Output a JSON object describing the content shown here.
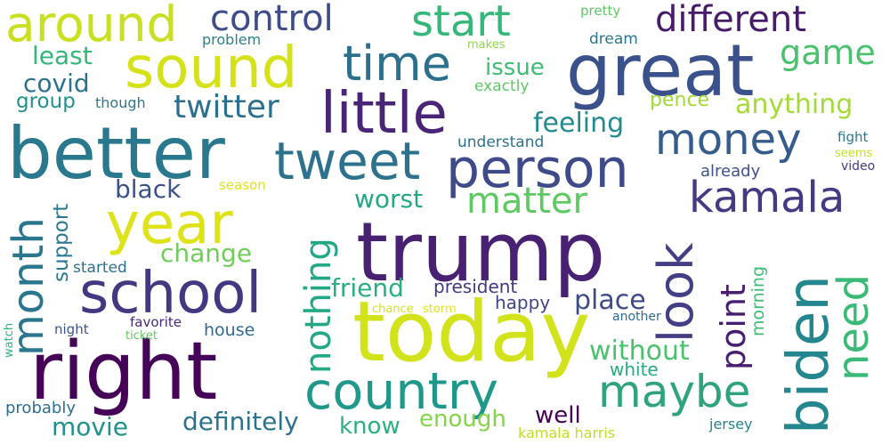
{
  "words": [
    {
      "text": "today",
      "color": "#d2e21b"
    },
    {
      "text": "trump",
      "color": "#482173"
    },
    {
      "text": "right",
      "color": "#450457"
    },
    {
      "text": "better",
      "color": "#2a788e"
    },
    {
      "text": "great",
      "color": "#3b518b"
    },
    {
      "text": "biden",
      "color": "#24868e"
    },
    {
      "text": "person",
      "color": "#3e4a89"
    },
    {
      "text": "school",
      "color": "#453781"
    },
    {
      "text": "country",
      "color": "#1f978b"
    },
    {
      "text": "year",
      "color": "#dde318"
    },
    {
      "text": "little",
      "color": "#482576"
    },
    {
      "text": "sound",
      "color": "#d5e21a"
    },
    {
      "text": "tweet",
      "color": "#2c718e"
    },
    {
      "text": "maybe",
      "color": "#2ea37d"
    },
    {
      "text": "look",
      "color": "#433e85"
    },
    {
      "text": "around",
      "color": "#c8e020"
    },
    {
      "text": "money",
      "color": "#365c8d"
    },
    {
      "text": "kamala",
      "color": "#443a83"
    },
    {
      "text": "time",
      "color": "#2d708e"
    },
    {
      "text": "month",
      "color": "#2a768e"
    },
    {
      "text": "start",
      "color": "#35b779"
    },
    {
      "text": "need",
      "color": "#3aba76"
    },
    {
      "text": "nothing",
      "color": "#22a884"
    },
    {
      "text": "different",
      "color": "#481b6d"
    },
    {
      "text": "control",
      "color": "#3e4c8a"
    },
    {
      "text": "matter",
      "color": "#5ec962"
    },
    {
      "text": "point",
      "color": "#481f70"
    },
    {
      "text": "twitter",
      "color": "#2d708e"
    },
    {
      "text": "game",
      "color": "#4ac16d"
    },
    {
      "text": "feeling",
      "color": "#238a8d"
    },
    {
      "text": "anything",
      "color": "#a5db36"
    },
    {
      "text": "friend",
      "color": "#29af7f"
    },
    {
      "text": "worst",
      "color": "#22a884"
    },
    {
      "text": "change",
      "color": "#6ece58"
    },
    {
      "text": "black",
      "color": "#3b528b"
    },
    {
      "text": "place",
      "color": "#3e4a89"
    },
    {
      "text": "without",
      "color": "#4ac16d"
    },
    {
      "text": "definitely",
      "color": "#2c728e"
    },
    {
      "text": "issue",
      "color": "#3fbc73"
    },
    {
      "text": "least",
      "color": "#35b779"
    },
    {
      "text": "covid",
      "color": "#2c728e"
    },
    {
      "text": "support",
      "color": "#2a788e"
    },
    {
      "text": "movie",
      "color": "#20928c"
    },
    {
      "text": "enough",
      "color": "#84d44b"
    },
    {
      "text": "know",
      "color": "#2ab07f"
    },
    {
      "text": "well",
      "color": "#440154"
    },
    {
      "text": "morning",
      "color": "#3dbc74"
    },
    {
      "text": "president",
      "color": "#453882"
    },
    {
      "text": "group",
      "color": "#21918c"
    },
    {
      "text": "pence",
      "color": "#a0da39"
    },
    {
      "text": "happy",
      "color": "#404688"
    },
    {
      "text": "white",
      "color": "#25ac82"
    },
    {
      "text": "house",
      "color": "#31688e"
    },
    {
      "text": "understand",
      "color": "#2d708e"
    },
    {
      "text": "started",
      "color": "#2c718e"
    },
    {
      "text": "problem",
      "color": "#26828e"
    },
    {
      "text": "dream",
      "color": "#2a768e"
    },
    {
      "text": "exactly",
      "color": "#5ec962"
    },
    {
      "text": "though",
      "color": "#2a788e"
    },
    {
      "text": "already",
      "color": "#3b528b"
    },
    {
      "text": "season",
      "color": "#dfe318"
    },
    {
      "text": "probably",
      "color": "#2e6e8e"
    },
    {
      "text": "night",
      "color": "#3b528b"
    },
    {
      "text": "favorite",
      "color": "#482878"
    },
    {
      "text": "ticket",
      "color": "#5ec962"
    },
    {
      "text": "chance",
      "color": "#d2e21b"
    },
    {
      "text": "storm",
      "color": "#e2e418"
    },
    {
      "text": "another",
      "color": "#31688e"
    },
    {
      "text": "pretty",
      "color": "#5ec962"
    },
    {
      "text": "makes",
      "color": "#8fd744"
    },
    {
      "text": "fight",
      "color": "#2a788e"
    },
    {
      "text": "seems",
      "color": "#c2df23"
    },
    {
      "text": "video",
      "color": "#443a83"
    },
    {
      "text": "jersey",
      "color": "#26828e"
    },
    {
      "text": "kamala harris",
      "color": "#bddf26"
    },
    {
      "text": "watch",
      "color": "#2fb47c"
    }
  ]
}
